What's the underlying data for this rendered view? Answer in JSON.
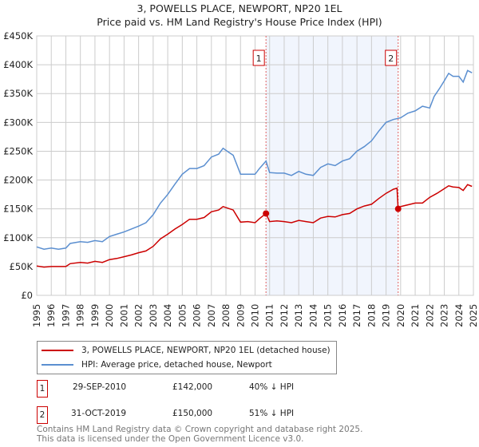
{
  "chart_data": {
    "type": "line",
    "title": "3, POWELLS PLACE, NEWPORT, NP20 1EL",
    "subtitle": "Price paid vs. HM Land Registry's House Price Index (HPI)",
    "xlim": [
      1995,
      2025
    ],
    "ylim": [
      0,
      450000
    ],
    "grid": true,
    "y_ticks": [
      "£0",
      "£50K",
      "£100K",
      "£150K",
      "£200K",
      "£250K",
      "£300K",
      "£350K",
      "£400K",
      "£450K"
    ],
    "x_ticks": [
      "1995",
      "1996",
      "1997",
      "1998",
      "1999",
      "2000",
      "2001",
      "2002",
      "2003",
      "2004",
      "2005",
      "2006",
      "2007",
      "2008",
      "2009",
      "2010",
      "2011",
      "2012",
      "2013",
      "2014",
      "2015",
      "2016",
      "2017",
      "2018",
      "2019",
      "2020",
      "2021",
      "2022",
      "2023",
      "2024",
      "2025"
    ],
    "shaded_range": [
      2010.75,
      2019.83
    ],
    "series": [
      {
        "name": "3, POWELLS PLACE, NEWPORT, NP20 1EL (detached house)",
        "color": "#cc0000",
        "x": [
          1995,
          1995.5,
          1996,
          1997,
          1997.3,
          1998,
          1998.5,
          1999,
          1999.5,
          2000,
          2000.5,
          2001,
          2001.5,
          2002,
          2002.5,
          2003,
          2003.5,
          2004,
          2004.5,
          2005,
          2005.5,
          2006,
          2006.5,
          2007,
          2007.5,
          2007.8,
          2008.5,
          2009,
          2009.5,
          2010,
          2010.3,
          2010.75,
          2011,
          2011.5,
          2012,
          2012.5,
          2013,
          2013.5,
          2014,
          2014.5,
          2015,
          2015.5,
          2016,
          2016.5,
          2017,
          2017.5,
          2018,
          2018.5,
          2019,
          2019.5,
          2019.75,
          2019.83,
          2020,
          2020.5,
          2021,
          2021.5,
          2022,
          2022.5,
          2023,
          2023.3,
          2023.6,
          2024,
          2024.3,
          2024.6,
          2024.9
        ],
        "y": [
          51,
          49,
          50,
          50,
          55,
          57,
          56,
          59,
          57,
          62,
          64,
          67,
          70,
          74,
          77,
          85,
          98,
          106,
          115,
          123,
          132,
          132,
          135,
          145,
          148,
          154,
          148,
          127,
          128,
          126,
          133,
          142,
          128,
          129,
          128,
          126,
          130,
          128,
          126,
          134,
          137,
          136,
          140,
          142,
          150,
          155,
          158,
          168,
          177,
          184,
          186,
          150,
          154,
          157,
          160,
          160,
          170,
          177,
          185,
          190,
          188,
          187,
          182,
          192,
          189
        ]
      },
      {
        "name": "HPI: Average price, detached house, Newport",
        "color": "#5b8fd0",
        "x": [
          1995,
          1995.5,
          1996,
          1996.5,
          1997,
          1997.3,
          1998,
          1998.5,
          1999,
          1999.5,
          2000,
          2000.5,
          2001,
          2001.5,
          2002,
          2002.5,
          2003,
          2003.5,
          2004,
          2004.5,
          2005,
          2005.5,
          2006,
          2006.5,
          2007,
          2007.5,
          2007.8,
          2008.2,
          2008.5,
          2009,
          2009.5,
          2010,
          2010.3,
          2010.75,
          2011,
          2011.5,
          2012,
          2012.5,
          2013,
          2013.5,
          2014,
          2014.5,
          2015,
          2015.5,
          2016,
          2016.5,
          2017,
          2017.5,
          2018,
          2018.5,
          2019,
          2019.5,
          2020,
          2020.5,
          2021,
          2021.5,
          2022,
          2022.3,
          2022.7,
          2023,
          2023.3,
          2023.6,
          2024,
          2024.3,
          2024.6,
          2024.9
        ],
        "y": [
          84,
          80,
          82,
          80,
          82,
          90,
          93,
          92,
          95,
          93,
          102,
          106,
          110,
          115,
          120,
          126,
          140,
          160,
          175,
          193,
          210,
          220,
          220,
          225,
          240,
          245,
          255,
          248,
          243,
          210,
          210,
          210,
          220,
          233,
          213,
          212,
          212,
          208,
          215,
          210,
          208,
          222,
          228,
          225,
          233,
          237,
          250,
          258,
          268,
          285,
          300,
          305,
          308,
          316,
          320,
          328,
          325,
          345,
          360,
          372,
          385,
          380,
          380,
          370,
          390,
          386
        ]
      }
    ],
    "y_unit_multiplier": 1000,
    "sales": [
      {
        "label": "1",
        "x": 2010.75,
        "y": 142
      },
      {
        "label": "2",
        "x": 2019.83,
        "y": 150
      }
    ]
  },
  "legend": {
    "property": "3, POWELLS PLACE, NEWPORT, NP20 1EL (detached house)",
    "hpi": "HPI: Average price, detached house, Newport"
  },
  "transactions": [
    {
      "num": "1",
      "date": "29-SEP-2010",
      "price": "£142,000",
      "delta": "40% ↓ HPI"
    },
    {
      "num": "2",
      "date": "31-OCT-2019",
      "price": "£150,000",
      "delta": "51% ↓ HPI"
    }
  ],
  "footer": {
    "line1": "Contains HM Land Registry data © Crown copyright and database right 2025.",
    "line2": "This data is licensed under the Open Government Licence v3.0."
  }
}
